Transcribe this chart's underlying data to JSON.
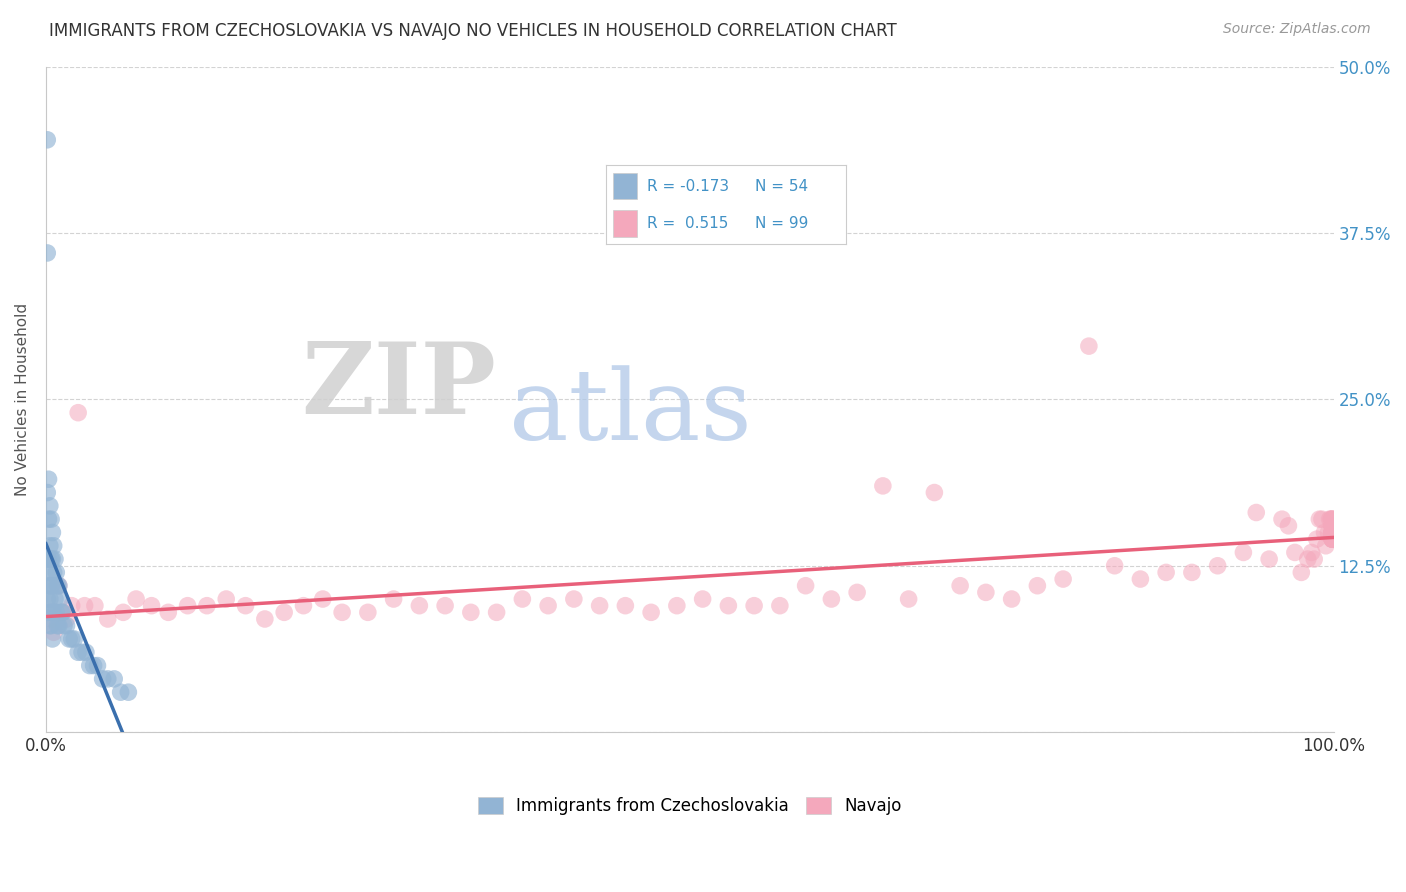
{
  "title": "IMMIGRANTS FROM CZECHOSLOVAKIA VS NAVAJO NO VEHICLES IN HOUSEHOLD CORRELATION CHART",
  "source": "Source: ZipAtlas.com",
  "ylabel": "No Vehicles in Household",
  "xlim": [
    0.0,
    1.0
  ],
  "ylim": [
    0.0,
    0.5
  ],
  "watermark_zip": "ZIP",
  "watermark_atlas": "atlas",
  "blue_color": "#92b4d4",
  "pink_color": "#f4a8bc",
  "blue_line_color": "#3a6fad",
  "pink_line_color": "#e8607a",
  "background_color": "#ffffff",
  "blue_r": "R = -0.173",
  "blue_n": "N = 54",
  "pink_r": "R =  0.515",
  "pink_n": "N = 99",
  "blue_x": [
    0.001,
    0.001,
    0.001,
    0.001,
    0.001,
    0.002,
    0.002,
    0.002,
    0.002,
    0.002,
    0.003,
    0.003,
    0.003,
    0.003,
    0.003,
    0.004,
    0.004,
    0.004,
    0.004,
    0.005,
    0.005,
    0.005,
    0.005,
    0.005,
    0.006,
    0.006,
    0.006,
    0.007,
    0.007,
    0.008,
    0.008,
    0.009,
    0.009,
    0.01,
    0.01,
    0.011,
    0.012,
    0.013,
    0.014,
    0.016,
    0.018,
    0.02,
    0.022,
    0.025,
    0.028,
    0.031,
    0.034,
    0.037,
    0.04,
    0.044,
    0.048,
    0.053,
    0.058,
    0.064
  ],
  "blue_y": [
    0.445,
    0.36,
    0.18,
    0.13,
    0.1,
    0.19,
    0.16,
    0.13,
    0.11,
    0.09,
    0.17,
    0.14,
    0.12,
    0.1,
    0.08,
    0.16,
    0.13,
    0.11,
    0.08,
    0.15,
    0.13,
    0.11,
    0.09,
    0.07,
    0.14,
    0.12,
    0.09,
    0.13,
    0.1,
    0.12,
    0.09,
    0.11,
    0.08,
    0.11,
    0.08,
    0.1,
    0.09,
    0.09,
    0.08,
    0.08,
    0.07,
    0.07,
    0.07,
    0.06,
    0.06,
    0.06,
    0.05,
    0.05,
    0.05,
    0.04,
    0.04,
    0.04,
    0.03,
    0.03
  ],
  "pink_x": [
    0.004,
    0.006,
    0.01,
    0.013,
    0.016,
    0.02,
    0.025,
    0.03,
    0.038,
    0.048,
    0.06,
    0.07,
    0.082,
    0.095,
    0.11,
    0.125,
    0.14,
    0.155,
    0.17,
    0.185,
    0.2,
    0.215,
    0.23,
    0.25,
    0.27,
    0.29,
    0.31,
    0.33,
    0.35,
    0.37,
    0.39,
    0.41,
    0.43,
    0.45,
    0.47,
    0.49,
    0.51,
    0.53,
    0.55,
    0.57,
    0.59,
    0.61,
    0.63,
    0.65,
    0.67,
    0.69,
    0.71,
    0.73,
    0.75,
    0.77,
    0.79,
    0.81,
    0.83,
    0.85,
    0.87,
    0.89,
    0.91,
    0.93,
    0.94,
    0.95,
    0.96,
    0.965,
    0.97,
    0.975,
    0.98,
    0.983,
    0.985,
    0.987,
    0.989,
    0.991,
    0.993,
    0.994,
    0.996,
    0.997,
    0.998,
    0.999,
    0.999,
    0.999,
    0.999,
    0.999,
    0.999,
    0.999,
    0.999,
    0.999,
    0.999,
    0.999,
    0.999,
    0.999,
    0.999,
    0.999,
    0.999,
    0.999,
    0.999,
    0.999,
    0.999,
    0.999,
    0.999,
    0.999,
    0.999
  ],
  "pink_y": [
    0.085,
    0.075,
    0.11,
    0.09,
    0.085,
    0.095,
    0.24,
    0.095,
    0.095,
    0.085,
    0.09,
    0.1,
    0.095,
    0.09,
    0.095,
    0.095,
    0.1,
    0.095,
    0.085,
    0.09,
    0.095,
    0.1,
    0.09,
    0.09,
    0.1,
    0.095,
    0.095,
    0.09,
    0.09,
    0.1,
    0.095,
    0.1,
    0.095,
    0.095,
    0.09,
    0.095,
    0.1,
    0.095,
    0.095,
    0.095,
    0.11,
    0.1,
    0.105,
    0.185,
    0.1,
    0.18,
    0.11,
    0.105,
    0.1,
    0.11,
    0.115,
    0.29,
    0.125,
    0.115,
    0.12,
    0.12,
    0.125,
    0.135,
    0.165,
    0.13,
    0.16,
    0.155,
    0.135,
    0.12,
    0.13,
    0.135,
    0.13,
    0.145,
    0.16,
    0.16,
    0.15,
    0.14,
    0.15,
    0.16,
    0.16,
    0.145,
    0.15,
    0.15,
    0.155,
    0.155,
    0.145,
    0.15,
    0.155,
    0.15,
    0.145,
    0.15,
    0.145,
    0.16,
    0.16,
    0.145,
    0.15,
    0.15,
    0.155,
    0.155,
    0.145,
    0.15,
    0.155,
    0.16,
    0.155
  ]
}
